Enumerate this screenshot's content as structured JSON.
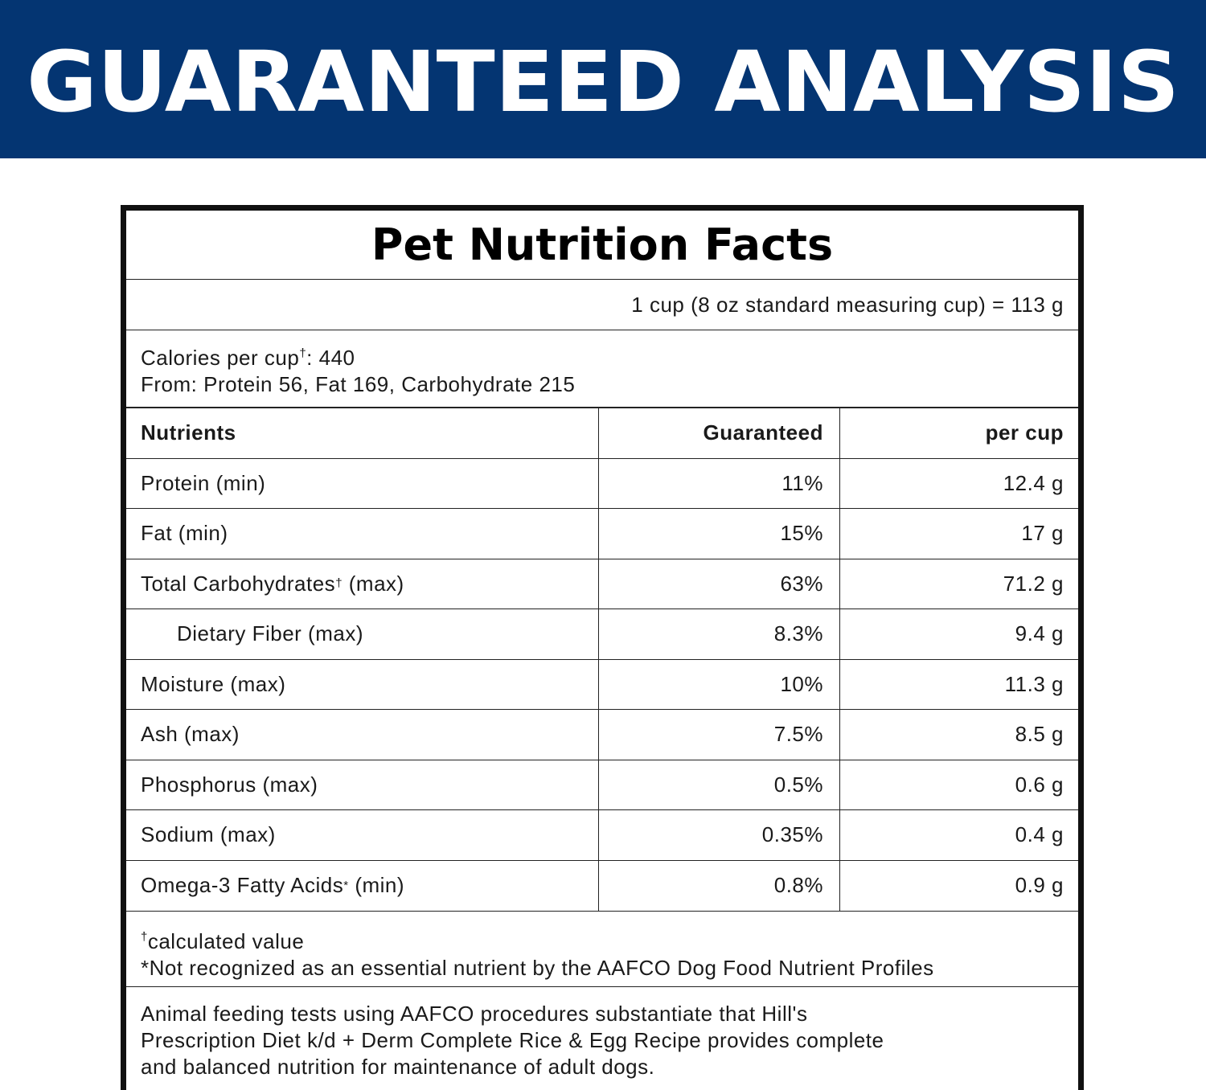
{
  "banner": {
    "title": "GUARANTEED ANALYSIS",
    "background_color": "#043572"
  },
  "facts": {
    "title": "Pet Nutrition Facts",
    "serving_size": "1 cup (8 oz standard measuring cup) = 113 g",
    "calories_label": "Calories per cup",
    "calories_mark": "†",
    "calories_value": ": 440",
    "calories_from": "From: Protein 56, Fat 169, Carbohydrate 215"
  },
  "table": {
    "headers": [
      "Nutrients",
      "Guaranteed",
      "per cup"
    ],
    "rows": [
      {
        "nutrient": "Protein (min)",
        "mark": "",
        "suffix": "",
        "guaranteed": "11%",
        "per_cup": "12.4 g"
      },
      {
        "nutrient": "Fat (min)",
        "mark": "",
        "suffix": "",
        "guaranteed": "15%",
        "per_cup": "17 g"
      },
      {
        "nutrient": "Total Carbohydrates",
        "mark": "†",
        "suffix": " (max)",
        "guaranteed": "63%",
        "per_cup": "71.2 g"
      },
      {
        "nutrient": "Dietary Fiber (max)",
        "mark": "",
        "suffix": "",
        "guaranteed": "8.3%",
        "per_cup": "9.4 g"
      },
      {
        "nutrient": "Moisture (max)",
        "mark": "",
        "suffix": "",
        "guaranteed": "10%",
        "per_cup": "11.3 g"
      },
      {
        "nutrient": "Ash (max)",
        "mark": "",
        "suffix": "",
        "guaranteed": "7.5%",
        "per_cup": "8.5 g"
      },
      {
        "nutrient": "Phosphorus (max)",
        "mark": "",
        "suffix": "",
        "guaranteed": "0.5%",
        "per_cup": "0.6 g"
      },
      {
        "nutrient": "Sodium (max)",
        "mark": "",
        "suffix": "",
        "guaranteed": "0.35%",
        "per_cup": "0.4 g"
      },
      {
        "nutrient": "Omega-3 Fatty Acids",
        "mark": "*",
        "suffix": " (min)",
        "guaranteed": "0.8%",
        "per_cup": "0.9 g"
      }
    ]
  },
  "footnotes": {
    "calculated_mark": "†",
    "calculated_text": "calculated value",
    "aafco_note": "*Not recognized as an essential nutrient by the AAFCO Dog Food Nutrient Profiles"
  },
  "statement": {
    "line1": "Animal feeding tests using AAFCO procedures substantiate that Hill's",
    "line2": "Prescription Diet k/d + Derm Complete Rice & Egg Recipe provides complete",
    "line3": "and balanced nutrition for maintenance of adult dogs."
  }
}
